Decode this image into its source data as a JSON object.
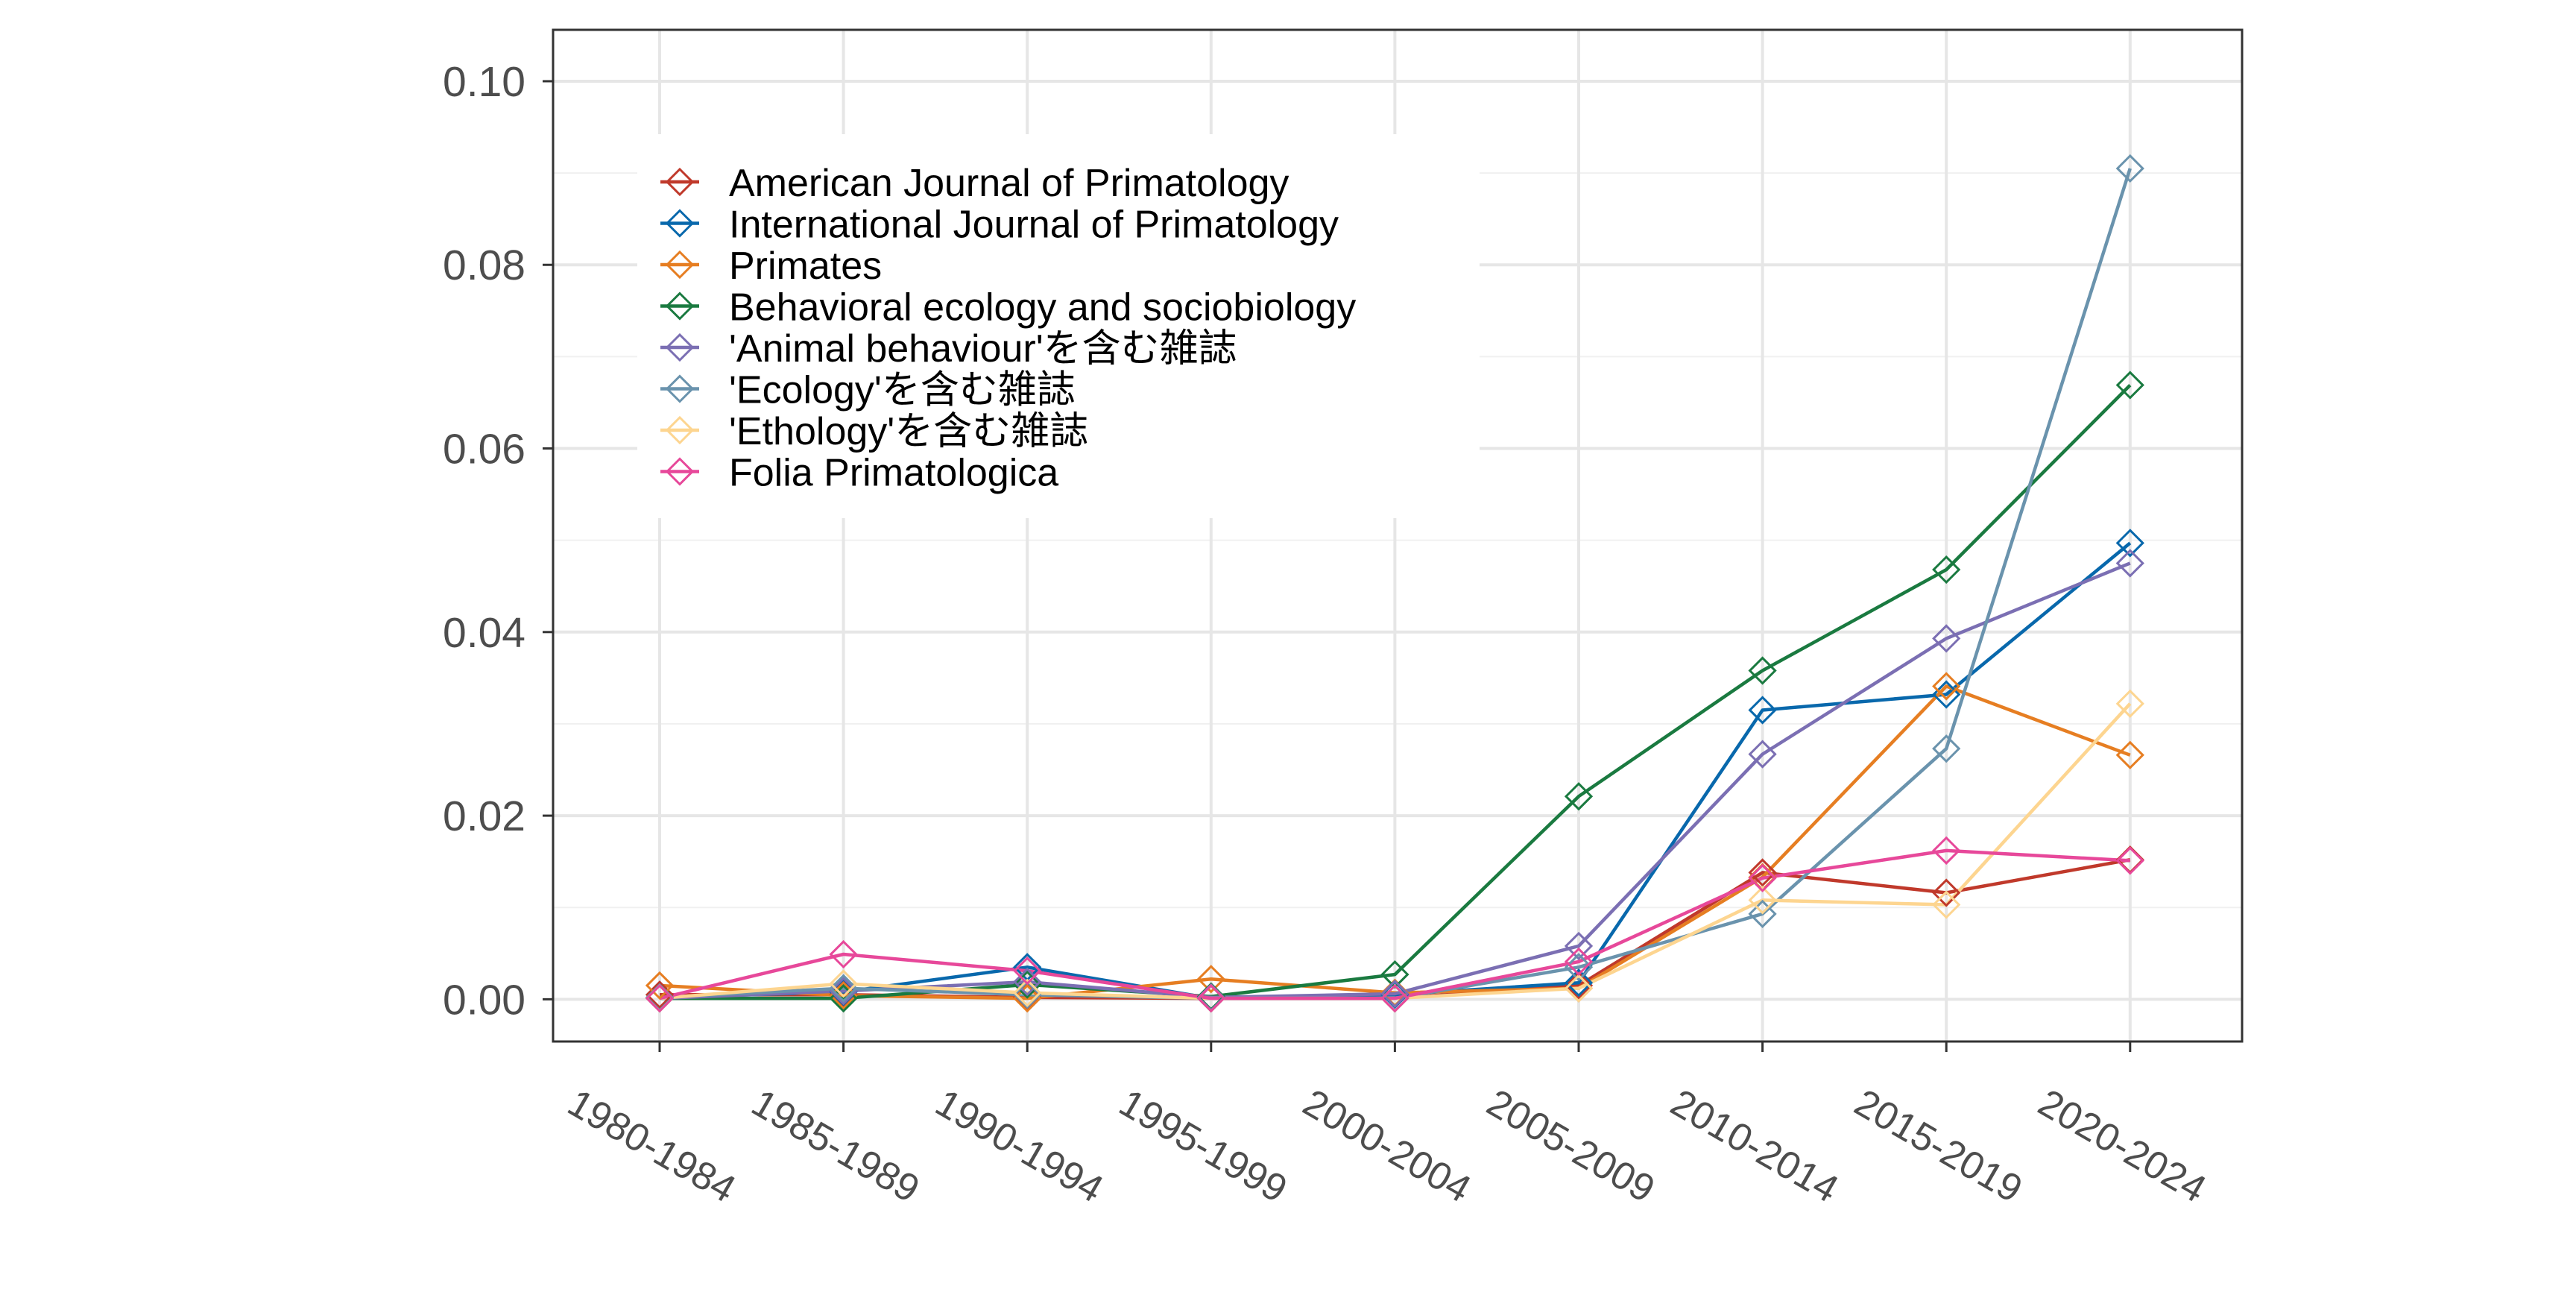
{
  "chart_data": {
    "type": "line",
    "title": "",
    "xlabel": "",
    "ylabel": "",
    "categories": [
      "1980-1984",
      "1985-1989",
      "1990-1994",
      "1995-1999",
      "2000-2004",
      "2005-2009",
      "2010-2014",
      "2015-2019",
      "2020-2024"
    ],
    "yticks": [
      "0.00",
      "0.02",
      "0.04",
      "0.06",
      "0.08",
      "0.10"
    ],
    "ylim": [
      -0.0046,
      0.1056
    ],
    "grid": true,
    "legend_position": "top-left",
    "marker": "open-diamond",
    "series": [
      {
        "name": "American Journal of Primatology",
        "color": "#C0392B",
        "values": [
          0.0005,
          0.0005,
          0.0002,
          0.0001,
          0.0001,
          0.0015,
          0.0138,
          0.0116,
          0.0152
        ]
      },
      {
        "name": "International Journal of Primatology",
        "color": "#0868AC",
        "values": [
          0.0002,
          0.0008,
          0.0035,
          0.0001,
          0.0005,
          0.0018,
          0.0315,
          0.0332,
          0.0497
        ]
      },
      {
        "name": "Primates",
        "color": "#E67E22",
        "values": [
          0.0015,
          0.0004,
          0.0001,
          0.0022,
          0.0007,
          0.0012,
          0.0133,
          0.0341,
          0.0266
        ]
      },
      {
        "name": "Behavioral ecology and sociobiology",
        "color": "#1A7A40",
        "values": [
          0.0001,
          0.0001,
          0.0016,
          0.0003,
          0.0027,
          0.0221,
          0.0358,
          0.0468,
          0.0669
        ]
      },
      {
        "name": "'Animal behaviour'を含む雑誌",
        "color": "#7B6FB3",
        "values": [
          0.0001,
          0.0009,
          0.0019,
          0.0002,
          0.0006,
          0.0058,
          0.0267,
          0.0393,
          0.0475
        ]
      },
      {
        "name": "'Ecology'を含む雑誌",
        "color": "#6A93AD",
        "values": [
          0.0002,
          0.0012,
          0.0005,
          0.0001,
          0.0001,
          0.0035,
          0.0093,
          0.0273,
          0.0905
        ]
      },
      {
        "name": "'Ethology'を含む雑誌",
        "color": "#FDD590",
        "values": [
          0.0001,
          0.0017,
          0.0007,
          0.0001,
          0.0001,
          0.0012,
          0.0108,
          0.0103,
          0.0322
        ]
      },
      {
        "name": "Folia Primatologica",
        "color": "#E7489A",
        "values": [
          0.0001,
          0.0049,
          0.0031,
          0.0001,
          0.0001,
          0.0041,
          0.0132,
          0.0162,
          0.0151
        ]
      }
    ]
  }
}
